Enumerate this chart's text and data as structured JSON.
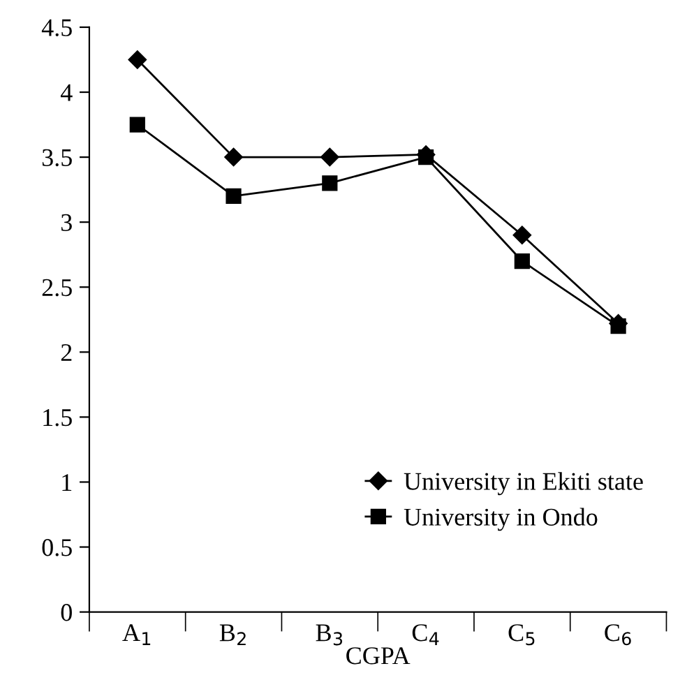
{
  "chart_data": {
    "type": "line",
    "xlabel": "CGPA",
    "categories": [
      "A$_{1}$",
      "B$_{2}$",
      "B$_{3}$",
      "C$_{4}$",
      "C$_{5}$",
      "C$_{6}$"
    ],
    "series": [
      {
        "name": "University in Ekiti state",
        "color": "#000000",
        "marker": "diamond",
        "values": [
          4.25,
          3.5,
          3.5,
          3.52,
          2.9,
          2.22
        ]
      },
      {
        "name": "University in Ondo",
        "color": "#000000",
        "marker": "square",
        "values": [
          3.75,
          3.2,
          3.3,
          3.5,
          2.7,
          2.2
        ]
      }
    ],
    "ylim": [
      0,
      4.5
    ],
    "yticks": [
      0,
      0.5,
      1,
      1.5,
      2,
      2.5,
      3,
      3.5,
      4,
      4.5
    ],
    "grid": false,
    "legend": "bottom right",
    "line_style": "solid"
  }
}
